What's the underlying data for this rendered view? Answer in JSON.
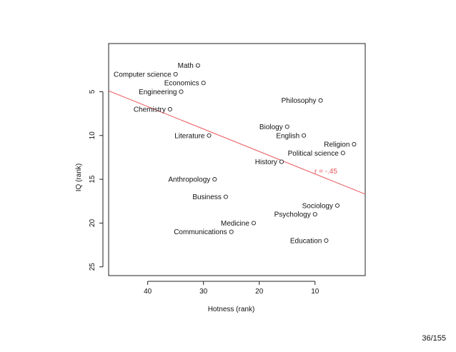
{
  "page_number": "36/155",
  "chart_data": {
    "type": "scatter",
    "xlabel": "Hotness (rank)",
    "ylabel": "IQ (rank)",
    "xlim": [
      47,
      1
    ],
    "ylim": [
      26,
      -0.5
    ],
    "x_ticks": [
      40,
      30,
      20,
      10
    ],
    "y_ticks": [
      5,
      10,
      15,
      20,
      25
    ],
    "points": [
      {
        "name": "Math",
        "x": 31,
        "y": 2
      },
      {
        "name": "Computer science",
        "x": 35,
        "y": 3
      },
      {
        "name": "Economics",
        "x": 30,
        "y": 4
      },
      {
        "name": "Engineering",
        "x": 34,
        "y": 5
      },
      {
        "name": "Philosophy",
        "x": 9,
        "y": 6
      },
      {
        "name": "Chemistry",
        "x": 36,
        "y": 7
      },
      {
        "name": "Biology",
        "x": 15,
        "y": 9
      },
      {
        "name": "Literature",
        "x": 29,
        "y": 10
      },
      {
        "name": "English",
        "x": 12,
        "y": 10
      },
      {
        "name": "Religion",
        "x": 3,
        "y": 11
      },
      {
        "name": "Political science",
        "x": 5,
        "y": 12
      },
      {
        "name": "History",
        "x": 16,
        "y": 13
      },
      {
        "name": "Anthropology",
        "x": 28,
        "y": 15
      },
      {
        "name": "Business",
        "x": 26,
        "y": 17
      },
      {
        "name": "Sociology",
        "x": 6,
        "y": 18
      },
      {
        "name": "Psychology",
        "x": 10,
        "y": 19
      },
      {
        "name": "Medicine",
        "x": 21,
        "y": 20
      },
      {
        "name": "Communications",
        "x": 25,
        "y": 21
      },
      {
        "name": "Education",
        "x": 8,
        "y": 22
      }
    ],
    "regression_line": {
      "x": [
        47,
        1
      ],
      "y": [
        4.9,
        16.7
      ],
      "color": "#e8555a"
    },
    "annotation": {
      "text": "r = -.45",
      "x": 6,
      "y": 14,
      "color": "#e8555a"
    }
  }
}
